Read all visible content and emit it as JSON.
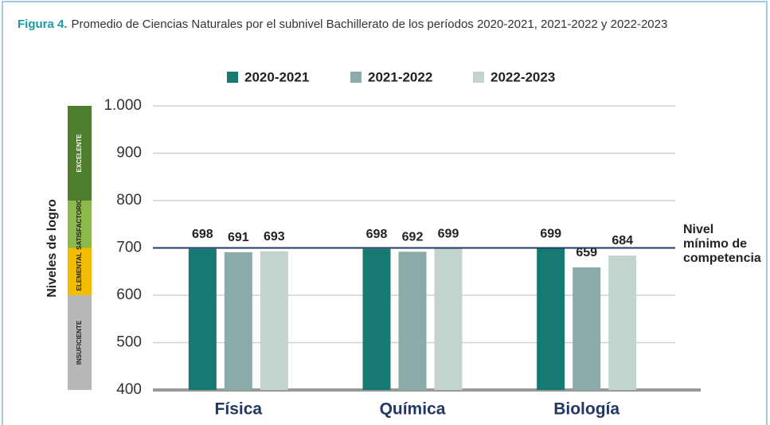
{
  "caption": {
    "label": "Figura 4.",
    "text": "Promedio de Ciencias Naturales por el subnivel Bachillerato de los períodos 2020-2021, 2021-2022 y 2022-2023"
  },
  "chart_data": {
    "type": "bar",
    "categories": [
      "Física",
      "Química",
      "Biología"
    ],
    "series": [
      {
        "name": "2020-2021",
        "color": "#167a72",
        "values": [
          698,
          698,
          699
        ]
      },
      {
        "name": "2021-2022",
        "color": "#8aaba8",
        "values": [
          691,
          692,
          659
        ]
      },
      {
        "name": "2022-2023",
        "color": "#c3d3cf",
        "values": [
          693,
          699,
          684
        ]
      }
    ],
    "ylim": [
      400,
      1000
    ],
    "yticks": [
      400,
      500,
      600,
      700,
      800,
      900,
      {
        "value": 1000,
        "label": "1.000"
      }
    ],
    "grid": true,
    "legend": "top",
    "ylabel": "Niveles de logro",
    "levels": [
      {
        "label": "INSUFICIENTE",
        "from": 400,
        "to": 600,
        "color": "#b8b8b8"
      },
      {
        "label": "ELEMENTAL",
        "from": 600,
        "to": 700,
        "color": "#f2bd00"
      },
      {
        "label": "SATISFACTORIO",
        "from": 700,
        "to": 800,
        "color": "#8cb94a"
      },
      {
        "label": "EXCELENTE",
        "from": 800,
        "to": 1000,
        "color": "#4e7d2e"
      }
    ],
    "reference_line": {
      "value": 700,
      "label": [
        "Nivel",
        "mínimo de",
        "competencia"
      ]
    }
  }
}
